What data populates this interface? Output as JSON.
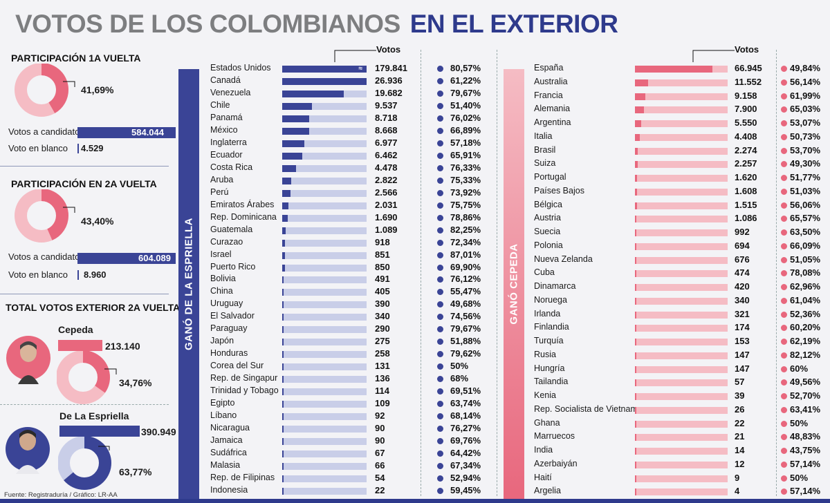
{
  "title": {
    "part1": "VOTOS DE LOS COLOMBIANOS",
    "part2": "EN EL EXTERIOR"
  },
  "colors": {
    "blue": "#3a4496",
    "blue_light": "#c9cee8",
    "pink": "#e8677d",
    "pink_light": "#f5bcc4",
    "gray_title": "#7d7e80"
  },
  "left_panel": {
    "vuelta1": {
      "heading": "PARTICIPACIÓN 1A VUELTA",
      "participation_pct": 41.69,
      "participation_label": "41,69%",
      "candidates_label": "Votos a candidatos",
      "candidates_value": 584044,
      "candidates_text": "584.044",
      "blank_label": "Voto en blanco",
      "blank_value": 4529,
      "blank_text": "4.529"
    },
    "vuelta2": {
      "heading": "PARTICIPACIÓN EN 2A VUELTA",
      "participation_pct": 43.4,
      "participation_label": "43,40%",
      "candidates_label": "Votos a candidatos",
      "candidates_value": 604089,
      "candidates_text": "604.089",
      "blank_label": "Voto en blanco",
      "blank_value": 8960,
      "blank_text": "8.960"
    },
    "total": {
      "heading": "TOTAL VOTOS EXTERIOR 2A VUELTA",
      "cepeda": {
        "name": "Cepeda",
        "votes": 213140,
        "votes_text": "213.140",
        "pct": 34.76,
        "pct_text": "34,76%"
      },
      "espriella": {
        "name": "De La Espriella",
        "votes": 390949,
        "votes_text": "390.949",
        "pct": 63.77,
        "pct_text": "63,77%"
      }
    },
    "source": "Fuente: Registraduría / Gráfico: LR-AA"
  },
  "chart_data": [
    {
      "type": "bar",
      "band_label": "GANÓ DE LA ESPRIELLA",
      "values_header": "Votos",
      "bar_max": 26936,
      "rows": [
        {
          "country": "Estados Unidos",
          "votes": 179841,
          "votes_text": "179.841",
          "pct_text": "80,57%",
          "break": true
        },
        {
          "country": "Canadá",
          "votes": 26936,
          "votes_text": "26.936",
          "pct_text": "61,22%"
        },
        {
          "country": "Venezuela",
          "votes": 19682,
          "votes_text": "19.682",
          "pct_text": "79,67%"
        },
        {
          "country": "Chile",
          "votes": 9537,
          "votes_text": "9.537",
          "pct_text": "51,40%"
        },
        {
          "country": "Panamá",
          "votes": 8718,
          "votes_text": "8.718",
          "pct_text": "76,02%"
        },
        {
          "country": "México",
          "votes": 8668,
          "votes_text": "8.668",
          "pct_text": "66,89%"
        },
        {
          "country": "Inglaterra",
          "votes": 6977,
          "votes_text": "6.977",
          "pct_text": "57,18%"
        },
        {
          "country": "Ecuador",
          "votes": 6462,
          "votes_text": "6.462",
          "pct_text": "65,91%"
        },
        {
          "country": "Costa Rica",
          "votes": 4478,
          "votes_text": "4.478",
          "pct_text": "76,33%"
        },
        {
          "country": "Aruba",
          "votes": 2822,
          "votes_text": "2.822",
          "pct_text": "75,33%"
        },
        {
          "country": "Perú",
          "votes": 2566,
          "votes_text": "2.566",
          "pct_text": "73,92%"
        },
        {
          "country": "Emiratos Árabes",
          "votes": 2031,
          "votes_text": "2.031",
          "pct_text": "75,75%"
        },
        {
          "country": "Rep. Dominicana",
          "votes": 1690,
          "votes_text": "1.690",
          "pct_text": "78,86%"
        },
        {
          "country": "Guatemala",
          "votes": 1089,
          "votes_text": "1.089",
          "pct_text": "82,25%"
        },
        {
          "country": "Curazao",
          "votes": 918,
          "votes_text": "918",
          "pct_text": "72,34%"
        },
        {
          "country": "Israel",
          "votes": 851,
          "votes_text": "851",
          "pct_text": "87,01%"
        },
        {
          "country": "Puerto Rico",
          "votes": 850,
          "votes_text": "850",
          "pct_text": "69,90%"
        },
        {
          "country": "Bolivia",
          "votes": 491,
          "votes_text": "491",
          "pct_text": "76,12%"
        },
        {
          "country": "China",
          "votes": 405,
          "votes_text": "405",
          "pct_text": "55,47%"
        },
        {
          "country": "Uruguay",
          "votes": 390,
          "votes_text": "390",
          "pct_text": "49,68%"
        },
        {
          "country": "El Salvador",
          "votes": 340,
          "votes_text": "340",
          "pct_text": "74,56%"
        },
        {
          "country": "Paraguay",
          "votes": 290,
          "votes_text": "290",
          "pct_text": "79,67%"
        },
        {
          "country": "Japón",
          "votes": 275,
          "votes_text": "275",
          "pct_text": "51,88%"
        },
        {
          "country": "Honduras",
          "votes": 258,
          "votes_text": "258",
          "pct_text": "79,62%"
        },
        {
          "country": "Corea del Sur",
          "votes": 131,
          "votes_text": "131",
          "pct_text": "50%"
        },
        {
          "country": "Rep. de Singapur",
          "votes": 136,
          "votes_text": "136",
          "pct_text": "68%"
        },
        {
          "country": "Trinidad y Tobago",
          "votes": 114,
          "votes_text": "114",
          "pct_text": "69,51%"
        },
        {
          "country": "Egipto",
          "votes": 109,
          "votes_text": "109",
          "pct_text": "63,74%"
        },
        {
          "country": "Líbano",
          "votes": 92,
          "votes_text": "92",
          "pct_text": "68,14%"
        },
        {
          "country": "Nicaragua",
          "votes": 90,
          "votes_text": "90",
          "pct_text": "76,27%"
        },
        {
          "country": "Jamaica",
          "votes": 90,
          "votes_text": "90",
          "pct_text": "69,76%"
        },
        {
          "country": "Sudáfrica",
          "votes": 67,
          "votes_text": "67",
          "pct_text": "64,42%"
        },
        {
          "country": "Malasia",
          "votes": 66,
          "votes_text": "66",
          "pct_text": "67,34%"
        },
        {
          "country": "Rep. de Filipinas",
          "votes": 54,
          "votes_text": "54",
          "pct_text": "52,94%"
        },
        {
          "country": "Indonesia",
          "votes": 22,
          "votes_text": "22",
          "pct_text": "59,45%"
        }
      ]
    },
    {
      "type": "bar",
      "band_label": "GANÓ CEPEDA",
      "values_header": "Votos",
      "bar_max": 80000,
      "rows": [
        {
          "country": "España",
          "votes": 66945,
          "votes_text": "66.945",
          "pct_text": "49,84%"
        },
        {
          "country": "Australia",
          "votes": 11552,
          "votes_text": "11.552",
          "pct_text": "56,14%"
        },
        {
          "country": "Francia",
          "votes": 9158,
          "votes_text": "9.158",
          "pct_text": "61,99%"
        },
        {
          "country": "Alemania",
          "votes": 7900,
          "votes_text": "7.900",
          "pct_text": "65,03%"
        },
        {
          "country": "Argentina",
          "votes": 5550,
          "votes_text": "5.550",
          "pct_text": "53,07%"
        },
        {
          "country": "Italia",
          "votes": 4408,
          "votes_text": "4.408",
          "pct_text": "50,73%"
        },
        {
          "country": "Brasil",
          "votes": 2274,
          "votes_text": "2.274",
          "pct_text": "53,70%"
        },
        {
          "country": "Suiza",
          "votes": 2257,
          "votes_text": "2.257",
          "pct_text": "49,30%"
        },
        {
          "country": "Portugal",
          "votes": 1620,
          "votes_text": "1.620",
          "pct_text": "51,77%"
        },
        {
          "country": "Países Bajos",
          "votes": 1608,
          "votes_text": "1.608",
          "pct_text": "51,03%"
        },
        {
          "country": "Bélgica",
          "votes": 1515,
          "votes_text": "1.515",
          "pct_text": "56,06%"
        },
        {
          "country": "Austria",
          "votes": 1086,
          "votes_text": "1.086",
          "pct_text": "65,57%"
        },
        {
          "country": "Suecia",
          "votes": 992,
          "votes_text": "992",
          "pct_text": "63,50%"
        },
        {
          "country": "Polonia",
          "votes": 694,
          "votes_text": "694",
          "pct_text": "66,09%"
        },
        {
          "country": "Nueva Zelanda",
          "votes": 676,
          "votes_text": "676",
          "pct_text": "51,05%"
        },
        {
          "country": "Cuba",
          "votes": 474,
          "votes_text": "474",
          "pct_text": "78,08%"
        },
        {
          "country": "Dinamarca",
          "votes": 420,
          "votes_text": "420",
          "pct_text": "62,96%"
        },
        {
          "country": "Noruega",
          "votes": 340,
          "votes_text": "340",
          "pct_text": "61,04%"
        },
        {
          "country": "Irlanda",
          "votes": 321,
          "votes_text": "321",
          "pct_text": "52,36%"
        },
        {
          "country": "Finlandia",
          "votes": 174,
          "votes_text": "174",
          "pct_text": "60,20%"
        },
        {
          "country": "Turquía",
          "votes": 153,
          "votes_text": "153",
          "pct_text": "62,19%"
        },
        {
          "country": "Rusia",
          "votes": 147,
          "votes_text": "147",
          "pct_text": "82,12%"
        },
        {
          "country": "Hungría",
          "votes": 147,
          "votes_text": "147",
          "pct_text": "60%"
        },
        {
          "country": "Tailandia",
          "votes": 57,
          "votes_text": "57",
          "pct_text": "49,56%"
        },
        {
          "country": "Kenia",
          "votes": 39,
          "votes_text": "39",
          "pct_text": "52,70%"
        },
        {
          "country": "Rep. Socialista de Vietnam",
          "votes": 26,
          "votes_text": "26",
          "pct_text": "63,41%"
        },
        {
          "country": "Ghana",
          "votes": 22,
          "votes_text": "22",
          "pct_text": "50%"
        },
        {
          "country": "Marruecos",
          "votes": 21,
          "votes_text": "21",
          "pct_text": "48,83%"
        },
        {
          "country": "India",
          "votes": 14,
          "votes_text": "14",
          "pct_text": "43,75%"
        },
        {
          "country": "Azerbaiyán",
          "votes": 12,
          "votes_text": "12",
          "pct_text": "57,14%"
        },
        {
          "country": "Haití",
          "votes": 9,
          "votes_text": "9",
          "pct_text": "50%"
        },
        {
          "country": "Argelia",
          "votes": 4,
          "votes_text": "4",
          "pct_text": "57,14%"
        }
      ]
    }
  ]
}
